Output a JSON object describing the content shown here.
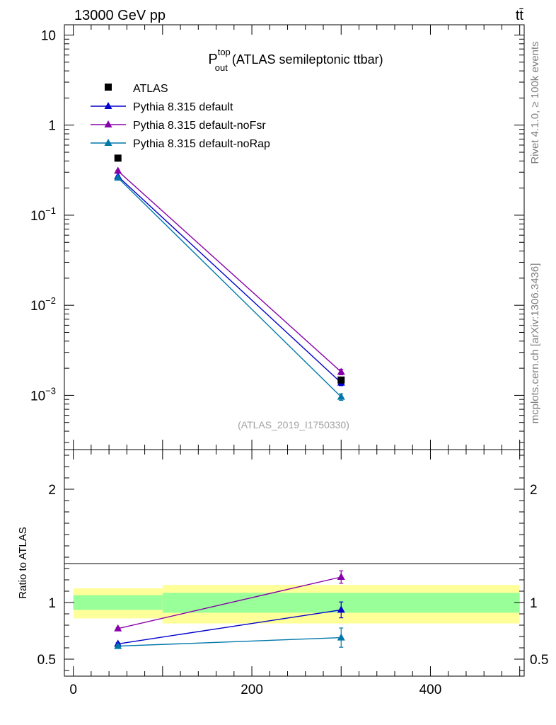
{
  "header": {
    "energy_label": "13000 GeV pp",
    "process_label": "tt̄"
  },
  "side_labels": {
    "rivet": "Rivet 4.1.0, ≥ 100k events",
    "mcplots": "mcplots.cern.ch [arXiv:1306.3436]"
  },
  "chart_data": [
    {
      "type": "scatter",
      "panel": "main",
      "title_main": "P",
      "title_sup": "top",
      "title_sub": "out",
      "title_rest": "(ATLAS semileptonic ttbar)",
      "watermark": "(ATLAS_2019_I1750330)",
      "yscale": "log",
      "ylim": [
        0.00025,
        13
      ],
      "xlim": [
        -10,
        505
      ],
      "y_ticks": [
        {
          "value": 10,
          "base": "10",
          "exp": ""
        },
        {
          "value": 1,
          "base": "1",
          "exp": ""
        },
        {
          "value": 0.1,
          "base": "10",
          "exp": "−1"
        },
        {
          "value": 0.01,
          "base": "10",
          "exp": "−2"
        },
        {
          "value": 0.001,
          "base": "10",
          "exp": "−3"
        }
      ],
      "legend_position": "top-left",
      "data": {
        "name": "ATLAS",
        "color": "#000000",
        "x": [
          50,
          300
        ],
        "y": [
          0.43,
          0.00148
        ]
      },
      "series": [
        {
          "name": "Pythia 8.315 default",
          "color": "#0000cc",
          "x": [
            50,
            300
          ],
          "y": [
            0.27,
            0.00138
          ],
          "yerr": [
            0.005,
            0.0001
          ]
        },
        {
          "name": "Pythia 8.315 default-noFsr",
          "color": "#8800aa",
          "x": [
            50,
            300
          ],
          "y": [
            0.31,
            0.00182
          ],
          "yerr": [
            0.006,
            0.00013
          ]
        },
        {
          "name": "Pythia 8.315 default-noRap",
          "color": "#0077aa",
          "x": [
            50,
            300
          ],
          "y": [
            0.26,
            0.00096
          ],
          "yerr": [
            0.005,
            8e-05
          ]
        }
      ]
    },
    {
      "type": "line",
      "panel": "ratio",
      "ylabel": "Ratio to ATLAS",
      "ylim": [
        0.35,
        2.35
      ],
      "xlim": [
        -10,
        505
      ],
      "x_ticks": [
        0,
        200,
        400
      ],
      "x_tick_labels": [
        "0",
        "200",
        "400"
      ],
      "y_ticks": [
        0.5,
        1,
        2
      ],
      "y_tick_labels": [
        "0.5",
        "1",
        "2"
      ],
      "bands": [
        {
          "x0": 0,
          "x1": 100,
          "inner": [
            0.935,
            1.065
          ],
          "outer": [
            0.86,
            1.125
          ]
        },
        {
          "x0": 100,
          "x1": 500,
          "inner": [
            0.91,
            1.085
          ],
          "outer": [
            0.815,
            1.155
          ]
        }
      ],
      "band_colors": {
        "inner": "#99ff99",
        "outer": "#ffff99"
      },
      "series": [
        {
          "name": "Pythia 8.315 default",
          "color": "#0000cc",
          "x": [
            50,
            300
          ],
          "y": [
            0.635,
            0.935
          ],
          "yerr": [
            0.01,
            0.07
          ]
        },
        {
          "name": "Pythia 8.315 default-noFsr",
          "color": "#8800aa",
          "x": [
            50,
            300
          ],
          "y": [
            0.77,
            1.225
          ],
          "yerr": [
            0.01,
            0.055
          ]
        },
        {
          "name": "Pythia 8.315 default-noRap",
          "color": "#0077aa",
          "x": [
            50,
            300
          ],
          "y": [
            0.615,
            0.69
          ],
          "yerr": [
            0.01,
            0.085
          ]
        }
      ]
    }
  ]
}
